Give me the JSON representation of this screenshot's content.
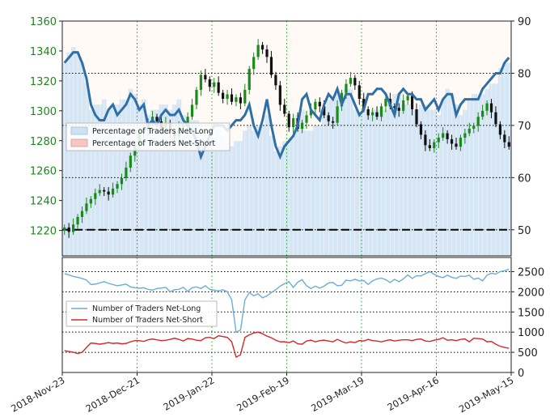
{
  "colors": {
    "net_long_fill": "#cfe2f3",
    "net_short_fill": "#f4c7c3",
    "price_up": "#1a8a1a",
    "price_down": "#111111",
    "pct_line": "#2f6fa8",
    "count_long": "#6aaed6",
    "count_short": "#d62728",
    "grid": "#22aa22",
    "left_ticks": "#1a8a1a"
  },
  "chart_data": [
    {
      "type": "line",
      "panel": "top",
      "left_axis": {
        "ticks": [
          1220,
          1240,
          1260,
          1280,
          1300,
          1320,
          1340,
          1360
        ],
        "range": [
          1203,
          1360
        ]
      },
      "right_axis": {
        "ticks": [
          50,
          60,
          70,
          80,
          90
        ],
        "range": [
          45,
          90
        ]
      },
      "legend": {
        "placement": "left-middle",
        "entries": [
          "Percentage of Traders Net-Long",
          "Percentage of Traders Net-Short"
        ]
      },
      "reference_line": 50,
      "price_close": [
        1222,
        1219,
        1224,
        1229,
        1233,
        1238,
        1241,
        1245,
        1247,
        1246,
        1244,
        1248,
        1251,
        1255,
        1262,
        1270,
        1277,
        1285,
        1287,
        1292,
        1296,
        1293,
        1288,
        1292,
        1285,
        1283,
        1289,
        1290,
        1296,
        1304,
        1314,
        1324,
        1321,
        1316,
        1319,
        1312,
        1308,
        1311,
        1306,
        1309,
        1305,
        1314,
        1328,
        1336,
        1344,
        1341,
        1336,
        1324,
        1317,
        1304,
        1298,
        1289,
        1295,
        1288,
        1292,
        1297,
        1301,
        1306,
        1303,
        1297,
        1293,
        1292,
        1303,
        1312,
        1318,
        1322,
        1317,
        1308,
        1301,
        1297,
        1299,
        1296,
        1303,
        1308,
        1303,
        1302,
        1300,
        1307,
        1310,
        1301,
        1291,
        1284,
        1277,
        1275,
        1279,
        1282,
        1285,
        1281,
        1278,
        1276,
        1282,
        1285,
        1288,
        1290,
        1296,
        1300,
        1305,
        1299,
        1291,
        1284,
        1279,
        1276
      ],
      "pct_net_long": [
        82,
        84,
        85,
        84,
        82,
        78,
        73,
        74,
        74,
        75,
        73,
        74,
        74,
        75,
        75,
        77,
        76,
        74,
        75,
        72,
        73,
        73,
        74,
        74,
        73,
        74,
        75,
        72,
        71,
        71,
        71,
        69,
        68,
        69,
        70,
        70,
        68,
        67,
        66,
        67,
        67,
        69,
        70,
        69,
        70,
        70,
        72,
        68,
        65,
        66,
        67,
        67,
        68,
        72,
        73,
        69,
        69,
        70,
        70,
        72,
        75,
        75,
        76,
        74,
        77,
        77,
        73,
        72,
        73,
        72,
        73,
        73,
        73,
        73,
        75,
        76,
        76,
        74,
        74,
        73,
        73,
        74,
        74,
        73,
        73,
        72,
        75,
        77,
        76,
        74,
        72,
        73,
        75,
        76,
        76,
        76,
        77,
        78,
        78,
        81,
        82,
        82
      ],
      "pct_line": [
        82,
        83,
        84,
        84,
        82,
        79,
        74,
        72,
        71,
        71,
        73,
        74,
        72,
        73,
        74,
        76,
        75,
        73,
        74,
        70,
        71,
        70,
        72,
        73,
        72,
        72,
        73,
        71,
        70,
        69,
        67,
        64,
        66,
        68,
        70,
        70,
        70,
        69,
        70,
        71,
        71,
        72,
        74,
        70,
        68,
        71,
        75,
        70,
        66,
        64,
        66,
        67,
        68,
        70,
        75,
        76,
        73,
        72,
        71,
        74,
        76,
        75,
        77,
        74,
        76,
        76,
        74,
        72,
        73,
        76,
        76,
        77,
        77,
        76,
        74,
        72,
        76,
        77,
        76,
        76,
        75,
        75,
        73,
        74,
        75,
        73,
        75,
        76,
        76,
        72,
        74,
        75,
        75,
        75,
        75,
        77,
        78,
        79,
        80,
        80,
        82,
        83
      ]
    },
    {
      "type": "line",
      "panel": "bottom",
      "right_axis": {
        "ticks": [
          0,
          500,
          1000,
          1500,
          2000,
          2500
        ],
        "range": [
          0,
          2850
        ]
      },
      "legend": {
        "placement": "left-middle",
        "entries": [
          "Number of Traders Net-Long",
          "Number of Traders Net-Short"
        ]
      },
      "series": [
        {
          "name": "Number of Traders Net-Long",
          "values": [
            2450,
            2420,
            2380,
            2360,
            2330,
            2290,
            2180,
            2190,
            2220,
            2250,
            2210,
            2180,
            2150,
            2170,
            2190,
            2120,
            2100,
            2090,
            2100,
            2060,
            2040,
            2080,
            2090,
            2110,
            2000,
            2050,
            2060,
            2110,
            2010,
            2100,
            2120,
            2080,
            2150,
            2060,
            2040,
            2020,
            2050,
            2000,
            1800,
            1000,
            1050,
            1800,
            1980,
            1900,
            1950,
            1850,
            1900,
            1980,
            2050,
            2140,
            2200,
            2250,
            2110,
            2240,
            2300,
            2150,
            2080,
            2140,
            2090,
            2140,
            2220,
            2230,
            2150,
            2160,
            2290,
            2270,
            2310,
            2270,
            2280,
            2180,
            2270,
            2320,
            2340,
            2300,
            2230,
            2310,
            2250,
            2320,
            2420,
            2330,
            2400,
            2390,
            2450,
            2500,
            2430,
            2380,
            2350,
            2410,
            2360,
            2330,
            2390,
            2380,
            2410,
            2310,
            2340,
            2270,
            2410,
            2460,
            2440,
            2500,
            2520,
            2560
          ]
        },
        {
          "name": "Number of Traders Net-Short",
          "values": [
            540,
            520,
            500,
            470,
            500,
            620,
            730,
            720,
            700,
            720,
            740,
            720,
            730,
            710,
            720,
            760,
            790,
            790,
            770,
            810,
            830,
            810,
            790,
            800,
            820,
            850,
            820,
            780,
            840,
            830,
            800,
            790,
            860,
            870,
            840,
            910,
            890,
            870,
            760,
            380,
            440,
            870,
            930,
            980,
            1000,
            960,
            900,
            860,
            800,
            760,
            760,
            740,
            780,
            710,
            700,
            780,
            800,
            760,
            790,
            800,
            780,
            760,
            820,
            770,
            730,
            760,
            740,
            790,
            780,
            820,
            790,
            780,
            760,
            790,
            810,
            780,
            800,
            810,
            810,
            790,
            820,
            830,
            780,
            770,
            800,
            820,
            860,
            800,
            810,
            790,
            820,
            830,
            760,
            850,
            840,
            830,
            760,
            770,
            700,
            650,
            620,
            600
          ]
        }
      ]
    },
    {
      "type": "x_axis",
      "tick_labels": [
        "2018-Nov-23",
        "2018-Dec-21",
        "2019-Jan-22",
        "2019-Feb-19",
        "2019-Mar-19",
        "2019-Apr-16",
        "2019-May-15"
      ]
    }
  ]
}
